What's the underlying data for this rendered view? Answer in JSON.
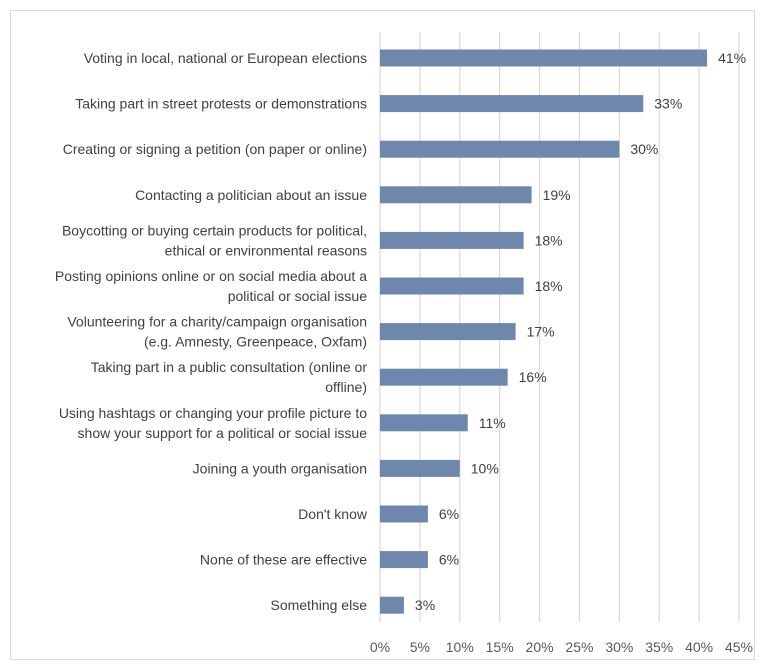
{
  "chart_data": {
    "type": "bar",
    "orientation": "horizontal",
    "title": "",
    "xlabel": "",
    "ylabel": "",
    "xlim": [
      0,
      45
    ],
    "x_ticks": [
      "0%",
      "5%",
      "10%",
      "15%",
      "20%",
      "25%",
      "30%",
      "35%",
      "40%",
      "45%"
    ],
    "grid": "vertical",
    "bar_color": "#6f86ad",
    "categories": [
      "Voting in local, national or European elections",
      "Taking part in street protests or demonstrations",
      "Creating or signing a petition (on paper or online)",
      "Contacting a politician about an issue",
      "Boycotting or buying certain products for political, ethical or environmental reasons",
      "Posting opinions online or on social media about a political or social issue",
      "Volunteering for a charity/campaign organisation (e.g. Amnesty, Greenpeace, Oxfam)",
      "Taking part in a public consultation (online or offline)",
      "Using hashtags or changing your profile picture to show your support for a political or social issue",
      "Joining a youth organisation",
      "Don't know",
      "None of these are effective",
      "Something else"
    ],
    "category_lines": [
      [
        "Voting in local, national or European elections"
      ],
      [
        "Taking part in street protests or demonstrations"
      ],
      [
        "Creating or signing a petition (on paper or online)"
      ],
      [
        "Contacting a politician about an issue"
      ],
      [
        "Boycotting or buying certain products for political,",
        "ethical or environmental reasons"
      ],
      [
        "Posting opinions online or on social media about a",
        "political or social issue"
      ],
      [
        "Volunteering for a charity/campaign organisation",
        "(e.g. Amnesty, Greenpeace, Oxfam)"
      ],
      [
        "Taking part in a public consultation (online or",
        "offline)"
      ],
      [
        "Using hashtags or changing your profile picture to",
        "show your support for a political or social issue"
      ],
      [
        "Joining a youth organisation"
      ],
      [
        "Don't know"
      ],
      [
        "None of these are effective"
      ],
      [
        "Something else"
      ]
    ],
    "values": [
      41,
      33,
      30,
      19,
      18,
      18,
      17,
      16,
      11,
      10,
      6,
      6,
      3
    ],
    "data_labels": [
      "41%",
      "33%",
      "30%",
      "19%",
      "18%",
      "18%",
      "17%",
      "16%",
      "11%",
      "10%",
      "6%",
      "6%",
      "3%"
    ]
  }
}
